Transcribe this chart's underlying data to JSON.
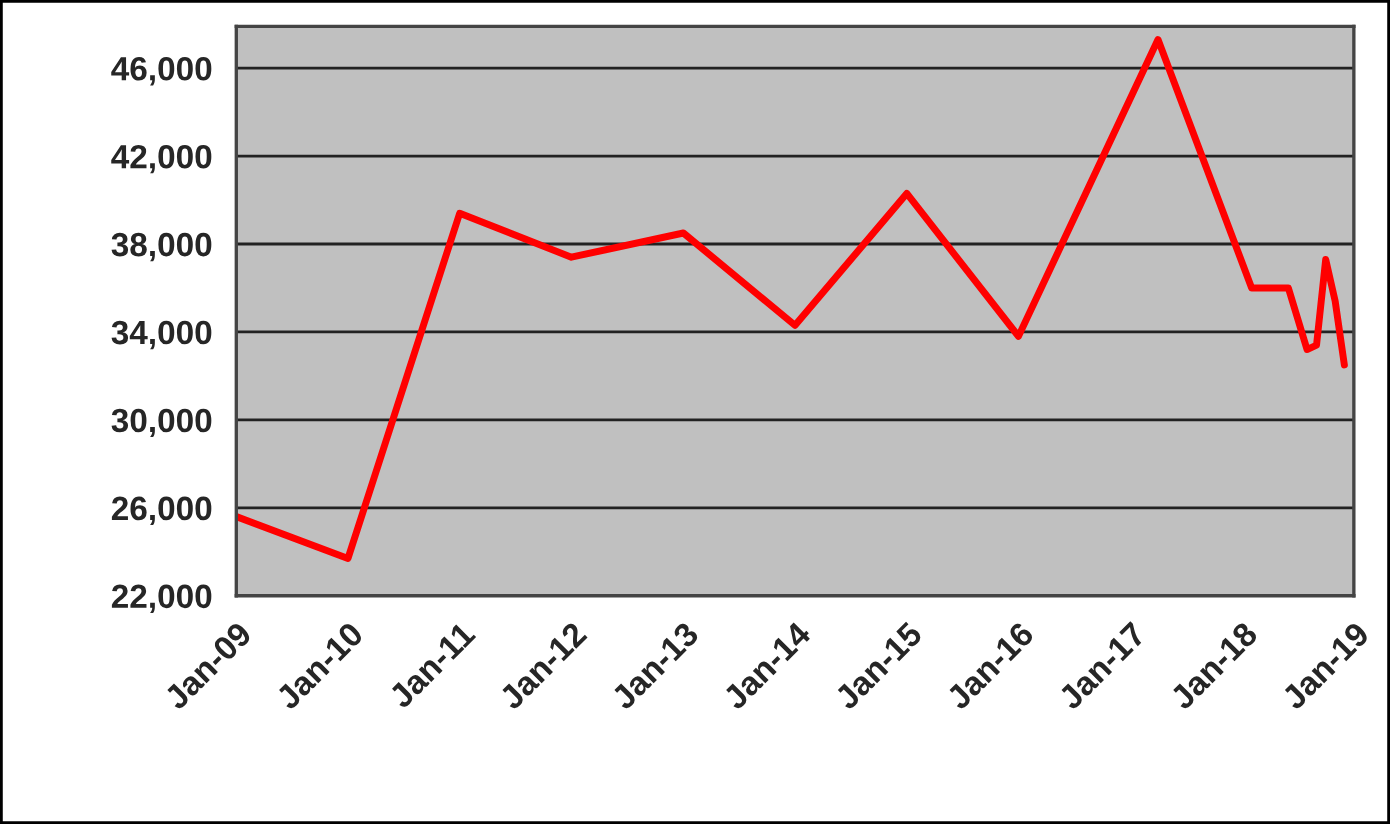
{
  "chart_data": {
    "type": "line",
    "x": [
      "2009-01",
      "2010-01",
      "2011-01",
      "2012-01",
      "2013-01",
      "2014-01",
      "2015-01",
      "2016-01",
      "2017-04",
      "2018-02",
      "2018-06",
      "2018-08",
      "2018-09",
      "2018-10",
      "2018-11",
      "2018-12"
    ],
    "series": [
      {
        "color": "#ff0000",
        "values": [
          25600,
          23700,
          39400,
          37400,
          38500,
          34300,
          40300,
          33800,
          47300,
          36000,
          36000,
          33200,
          33400,
          37300,
          35400,
          32500
        ]
      }
    ],
    "xlim": [
      "2009-01",
      "2019-01"
    ],
    "xticks": [
      {
        "value": "2009-01",
        "label": "Jan-09"
      },
      {
        "value": "2010-01",
        "label": "Jan-10"
      },
      {
        "value": "2011-01",
        "label": "Jan-11"
      },
      {
        "value": "2012-01",
        "label": "Jan-12"
      },
      {
        "value": "2013-01",
        "label": "Jan-13"
      },
      {
        "value": "2014-01",
        "label": "Jan-14"
      },
      {
        "value": "2015-01",
        "label": "Jan-15"
      },
      {
        "value": "2016-01",
        "label": "Jan-16"
      },
      {
        "value": "2017-01",
        "label": "Jan-17"
      },
      {
        "value": "2018-01",
        "label": "Jan-18"
      },
      {
        "value": "2019-01",
        "label": "Jan-19"
      }
    ],
    "ylim": [
      22000,
      47900
    ],
    "yticks": [
      {
        "value": 22000,
        "label": "22,000"
      },
      {
        "value": 26000,
        "label": "26,000"
      },
      {
        "value": 30000,
        "label": "30,000"
      },
      {
        "value": 34000,
        "label": "34,000"
      },
      {
        "value": 38000,
        "label": "38,000"
      },
      {
        "value": 42000,
        "label": "42,000"
      },
      {
        "value": 46000,
        "label": "46,000"
      }
    ],
    "grid": "y",
    "legend": false,
    "marker": "none",
    "line_style": "solid"
  }
}
